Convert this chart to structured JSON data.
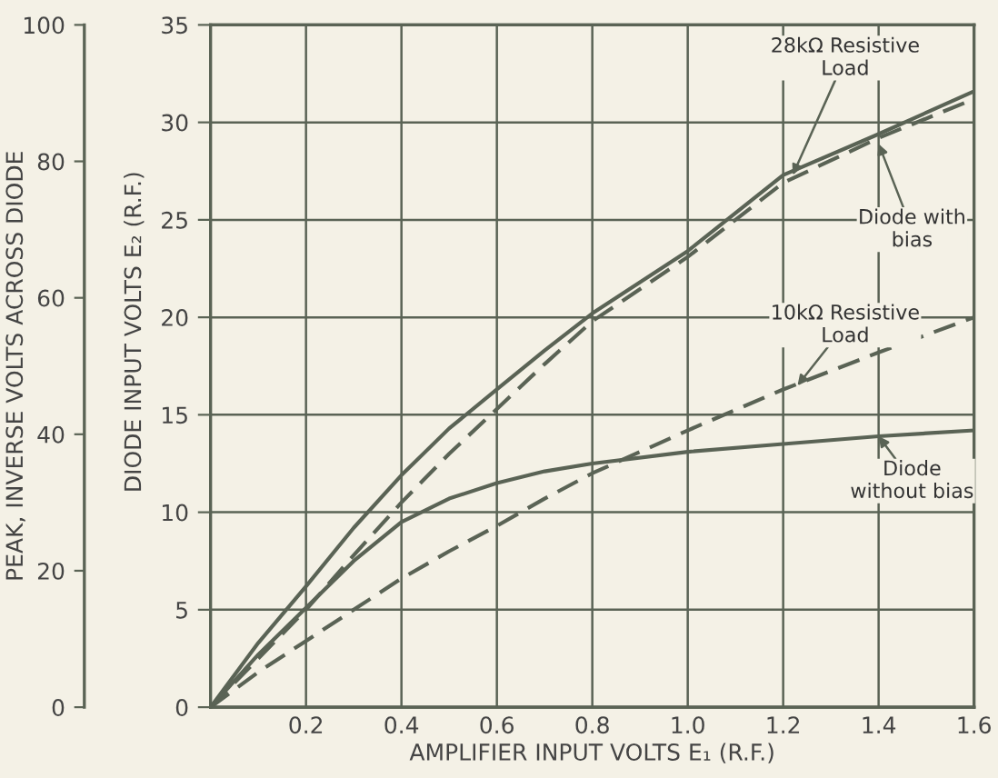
{
  "chart_data": {
    "type": "line",
    "xlabel": "AMPLIFIER INPUT VOLTS E₁ (R.F.)",
    "ylabel": "DIODE INPUT VOLTS E₂ (R.F.)",
    "y2label": "PEAK, INVERSE VOLTS ACROSS DIODE",
    "x": [
      0,
      0.1,
      0.2,
      0.3,
      0.4,
      0.5,
      0.6,
      0.7,
      0.8,
      1.0,
      1.2,
      1.4,
      1.6
    ],
    "series": [
      {
        "color": "#5a6355",
        "line_style": "solid",
        "values": [
          0,
          3.3,
          6.2,
          9.2,
          11.9,
          14.3,
          16.3,
          18.3,
          20.2,
          23.4,
          27.3,
          29.4,
          31.6
        ]
      },
      {
        "color": "#5a6355",
        "line_style": "dashed",
        "values": [
          0,
          2.5,
          5.0,
          7.8,
          10.5,
          13.0,
          15.3,
          17.6,
          19.8,
          23.1,
          26.9,
          29.2,
          31.2
        ]
      },
      {
        "color": "#5a6355",
        "line_style": "solid",
        "values": [
          0,
          2.7,
          5.1,
          7.5,
          9.5,
          10.7,
          11.5,
          12.1,
          12.5,
          13.1,
          13.5,
          13.9,
          14.2
        ]
      },
      {
        "color": "#5a6355",
        "line_style": "dashed",
        "values": [
          0,
          1.8,
          3.4,
          5.0,
          6.6,
          8.0,
          9.3,
          10.7,
          12.0,
          14.2,
          16.3,
          18.2,
          20.0
        ]
      }
    ],
    "xlim": [
      0,
      1.6
    ],
    "xticks": [
      0.2,
      0.4,
      0.6,
      0.8,
      {
        "value": 1.0,
        "label": "1.0"
      },
      1.2,
      1.4,
      1.6
    ],
    "ylim": [
      0,
      35
    ],
    "yticks": [
      0,
      5,
      10,
      15,
      20,
      25,
      30,
      35
    ],
    "y2lim": [
      0,
      100
    ],
    "y2ticks": [
      0,
      20,
      40,
      60,
      80,
      100
    ],
    "annotations": [
      {
        "text": "28kΩ Resistive\nLoad",
        "x": 1.22,
        "y": 27.3
      },
      {
        "text": "Diode with\nbias",
        "x": 1.4,
        "y": 28.9
      },
      {
        "text": "10kΩ Resistive\nLoad",
        "x": 1.23,
        "y": 16.5
      },
      {
        "text": "Diode\nwithout bias",
        "x": 1.4,
        "y": 13.9
      }
    ],
    "grid": true,
    "legend": false,
    "marker": "none"
  }
}
